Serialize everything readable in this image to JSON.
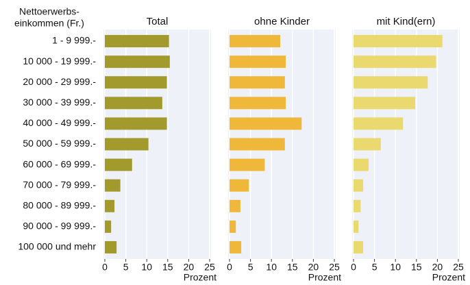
{
  "chart_data": [
    {
      "type": "bar",
      "orientation": "horizontal",
      "title": "Total",
      "y_label": [
        "Nettoerwerbs-",
        "einkommen (Fr.)"
      ],
      "categories": [
        "1 - 9 999.-",
        "10 000 - 19 999.-",
        "20 000 - 29 999.-",
        "30 000 - 39 999.-",
        "40 000 - 49 999.-",
        "50 000 - 59 999.-",
        "60 000 - 69 999.-",
        "70 000 - 79 999.-",
        "80 000 - 89 999.-",
        "90 000 - 99 999.-",
        "100 000 und mehr"
      ],
      "values": [
        15.3,
        15.5,
        14.8,
        13.7,
        14.8,
        10.4,
        6.5,
        3.7,
        2.3,
        1.5,
        2.8
      ],
      "color": "#a39a2e",
      "xlim": [
        0,
        25
      ],
      "xticks": [
        0,
        5,
        10,
        15,
        20,
        25
      ],
      "x_label": "Prozent",
      "grid": true
    },
    {
      "type": "bar",
      "orientation": "horizontal",
      "title": "ohne Kinder",
      "values": [
        12.1,
        13.4,
        13.2,
        13.4,
        17.2,
        13.2,
        8.4,
        4.6,
        2.6,
        1.5,
        2.8
      ],
      "color": "#f0b83a",
      "xlim": [
        0,
        25
      ],
      "xticks": [
        0,
        5,
        10,
        15,
        20,
        25
      ],
      "x_label": "Prozent",
      "grid": true
    },
    {
      "type": "bar",
      "orientation": "horizontal",
      "title": "mit Kind(ern)",
      "values": [
        21.2,
        19.7,
        17.7,
        14.7,
        11.8,
        6.5,
        3.6,
        2.3,
        1.7,
        1.2,
        2.3
      ],
      "color": "#e9d96e",
      "xlim": [
        0,
        25
      ],
      "xticks": [
        0,
        5,
        10,
        15,
        20,
        25
      ],
      "x_label": "Prozent",
      "grid": true
    }
  ]
}
